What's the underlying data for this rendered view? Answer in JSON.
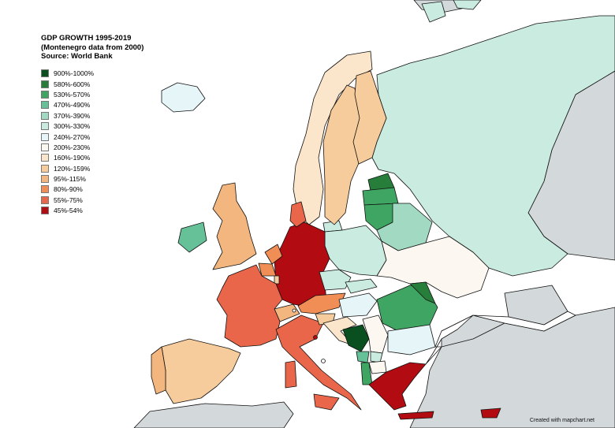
{
  "title": {
    "line1": "GDP GROWTH 1995-2019",
    "line2": "(Montenegro data from 2000)",
    "line3": "Source: World Bank"
  },
  "legend": [
    {
      "label": "900%-1000%",
      "color": "#0a4f1f"
    },
    {
      "label": "580%-600%",
      "color": "#267e3a"
    },
    {
      "label": "530%-570%",
      "color": "#3fa562"
    },
    {
      "label": "470%-490%",
      "color": "#66c198"
    },
    {
      "label": "370%-390%",
      "color": "#a1d9c3"
    },
    {
      "label": "300%-330%",
      "color": "#c9ebe0"
    },
    {
      "label": "240%-270%",
      "color": "#e6f5f7"
    },
    {
      "label": "200%-230%",
      "color": "#fcf8f1"
    },
    {
      "label": "160%-190%",
      "color": "#fbe6cb"
    },
    {
      "label": "120%-159%",
      "color": "#f7cc9c"
    },
    {
      "label": "95%-115%",
      "color": "#f4b67f"
    },
    {
      "label": "80%-90%",
      "color": "#f08e55"
    },
    {
      "label": "55%-75%",
      "color": "#e9664a"
    },
    {
      "label": "45%-54%",
      "color": "#b20c12"
    }
  ],
  "colors": {
    "sea": "#ffffff",
    "non_data": "#d3d8da",
    "border": "#111111"
  },
  "countries": [
    {
      "name": "Russia",
      "color": "#c9ebe0"
    },
    {
      "name": "Norway",
      "color": "#fbe6cb"
    },
    {
      "name": "Sweden",
      "color": "#f7cc9c"
    },
    {
      "name": "Finland",
      "color": "#f7cc9c"
    },
    {
      "name": "Iceland",
      "color": "#e6f5f7"
    },
    {
      "name": "Estonia",
      "color": "#267e3a"
    },
    {
      "name": "Latvia",
      "color": "#3fa562"
    },
    {
      "name": "Lithuania",
      "color": "#3fa562"
    },
    {
      "name": "Belarus",
      "color": "#a1d9c3"
    },
    {
      "name": "Ukraine",
      "color": "#fcf8f1"
    },
    {
      "name": "Poland",
      "color": "#c9ebe0"
    },
    {
      "name": "Germany",
      "color": "#b20c12"
    },
    {
      "name": "Denmark",
      "color": "#e9664a"
    },
    {
      "name": "Netherlands",
      "color": "#f08e55"
    },
    {
      "name": "Belgium",
      "color": "#f08e55"
    },
    {
      "name": "Luxembourg",
      "color": "#f7cc9c"
    },
    {
      "name": "France",
      "color": "#e9664a"
    },
    {
      "name": "United Kingdom",
      "color": "#f4b67f"
    },
    {
      "name": "Ireland",
      "color": "#66c198"
    },
    {
      "name": "Spain",
      "color": "#f7cc9c"
    },
    {
      "name": "Portugal",
      "color": "#f4b67f"
    },
    {
      "name": "Italy",
      "color": "#e9664a"
    },
    {
      "name": "Switzerland",
      "color": "#f4b67f"
    },
    {
      "name": "Austria",
      "color": "#f08e55"
    },
    {
      "name": "Czechia",
      "color": "#c9ebe0"
    },
    {
      "name": "Slovakia",
      "color": "#c9ebe0"
    },
    {
      "name": "Hungary",
      "color": "#e6f5f7"
    },
    {
      "name": "Slovenia",
      "color": "#f7cc9c"
    },
    {
      "name": "Croatia",
      "color": "#fbe6cb"
    },
    {
      "name": "Bosnia and Herzegovina",
      "color": "#0a4f1f"
    },
    {
      "name": "Serbia",
      "color": "#fcf8f1"
    },
    {
      "name": "Montenegro",
      "color": "#66c198"
    },
    {
      "name": "Albania",
      "color": "#3fa562"
    },
    {
      "name": "North Macedonia",
      "color": "#fcf8f1"
    },
    {
      "name": "Kosovo",
      "color": "#c9ebe0"
    },
    {
      "name": "Romania",
      "color": "#3fa562"
    },
    {
      "name": "Moldova",
      "color": "#267e3a"
    },
    {
      "name": "Bulgaria",
      "color": "#e6f5f7"
    },
    {
      "name": "Greece",
      "color": "#b20c12"
    },
    {
      "name": "Cyprus",
      "color": "#b20c12"
    },
    {
      "name": "Turkey",
      "color": "#ffffff"
    }
  ],
  "credit": "Created with mapchart.net"
}
